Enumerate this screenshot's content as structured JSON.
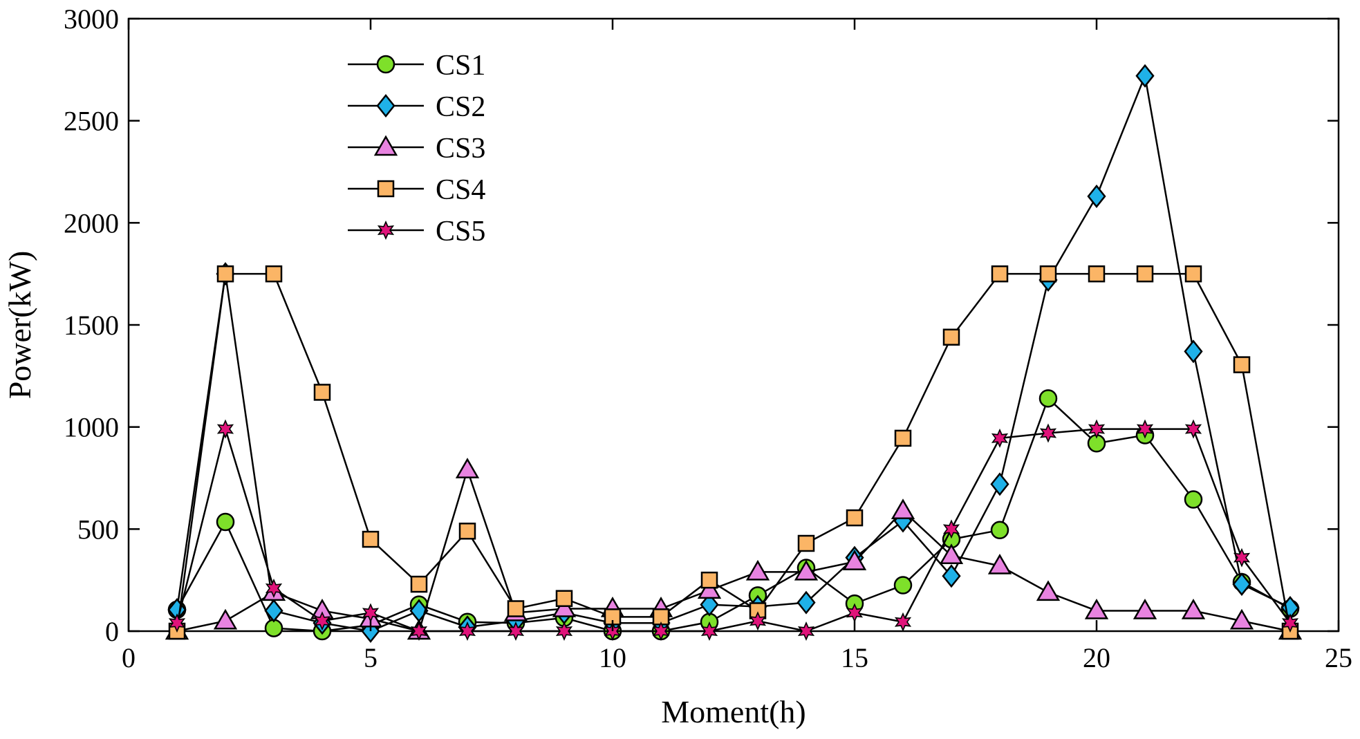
{
  "chart_data": {
    "type": "line",
    "title": "",
    "xlabel": "Moment(h)",
    "ylabel": "Power(kW)",
    "xlim": [
      0,
      25
    ],
    "ylim": [
      0,
      3000
    ],
    "xticks": [
      0,
      5,
      10,
      15,
      20,
      25
    ],
    "yticks": [
      0,
      500,
      1000,
      1500,
      2000,
      2500,
      3000
    ],
    "grid": false,
    "legend_position": "top-left",
    "x": [
      1,
      2,
      3,
      4,
      5,
      6,
      7,
      8,
      9,
      10,
      11,
      12,
      13,
      14,
      15,
      16,
      17,
      18,
      19,
      20,
      21,
      22,
      23,
      24
    ],
    "series": [
      {
        "name": "CS1",
        "marker": "circle",
        "color": "#7ee02a",
        "values": [
          105,
          535,
          15,
          0,
          30,
          130,
          45,
          40,
          65,
          0,
          0,
          45,
          175,
          310,
          135,
          225,
          450,
          495,
          1140,
          920,
          960,
          645,
          240,
          110
        ]
      },
      {
        "name": "CS2",
        "marker": "diamond",
        "color": "#1fb1e8",
        "values": [
          105,
          1750,
          100,
          40,
          0,
          100,
          20,
          50,
          90,
          40,
          40,
          130,
          120,
          140,
          360,
          540,
          270,
          720,
          1720,
          2130,
          2720,
          1370,
          230,
          115
        ]
      },
      {
        "name": "CS3",
        "marker": "triangle",
        "color": "#e883e0",
        "values": [
          0,
          50,
          190,
          100,
          60,
          0,
          790,
          90,
          110,
          110,
          110,
          200,
          290,
          290,
          340,
          590,
          370,
          320,
          190,
          100,
          100,
          100,
          50,
          0
        ]
      },
      {
        "name": "CS4",
        "marker": "square",
        "color": "#fbb566",
        "values": [
          0,
          1750,
          1750,
          1170,
          450,
          230,
          490,
          110,
          160,
          70,
          70,
          250,
          100,
          430,
          555,
          945,
          1440,
          1750,
          1750,
          1750,
          1750,
          1750,
          1305,
          0
        ]
      },
      {
        "name": "CS5",
        "marker": "star",
        "color": "#e0137a",
        "values": [
          40,
          990,
          210,
          50,
          90,
          0,
          0,
          0,
          0,
          0,
          0,
          0,
          50,
          0,
          90,
          45,
          500,
          945,
          970,
          990,
          990,
          990,
          360,
          40
        ]
      }
    ]
  }
}
